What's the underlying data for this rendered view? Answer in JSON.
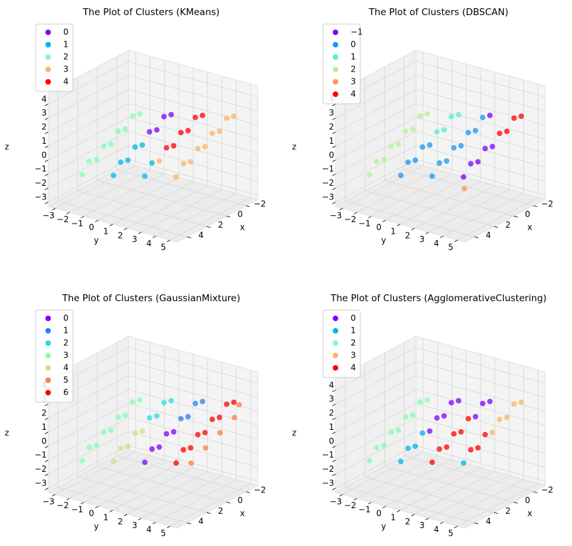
{
  "chart_data": [
    {
      "type": "scatter3d",
      "title": "The Plot of Clusters (KMeans)",
      "x_label": "x",
      "y_label": "y",
      "z_label": "z",
      "legend": "upper left",
      "xlim": [
        -3.2,
        5
      ],
      "ylim": [
        -3.5,
        5.5
      ],
      "zlim": [
        -3.3,
        4.8
      ],
      "xticks": [
        {
          "value": -2,
          "label": "−2"
        },
        0,
        2,
        4
      ],
      "yticks": [
        {
          "value": -3,
          "label": "−3"
        },
        {
          "value": -2,
          "label": "−2"
        },
        {
          "value": -1,
          "label": "−1"
        },
        0,
        1,
        2,
        3,
        4,
        5
      ],
      "zticks": [
        {
          "value": -3,
          "label": "−3"
        },
        {
          "value": -2,
          "label": "−2"
        },
        {
          "value": -1,
          "label": "−1"
        },
        0,
        1,
        2,
        3,
        4
      ],
      "series": [
        {
          "name": "0",
          "color": "#8000ff",
          "x": [
            1.25,
            1.1,
            0.95,
            0.8
          ],
          "y": [
            1,
            1.4,
            1.8,
            2.2
          ],
          "z": [
            1.9,
            2.1,
            3.1,
            3.3
          ]
        },
        {
          "name": "1",
          "color": "#00b5eb",
          "x": [
            2,
            1.85,
            1.7,
            1.55,
            1.4,
            1,
            0.85
          ],
          "y": [
            -1,
            -0.6,
            -0.2,
            0.2,
            0.6,
            0.5,
            0.9
          ],
          "z": [
            -1.5,
            -0.5,
            -0.3,
            0.7,
            0.9,
            -1.5,
            -0.5
          ]
        },
        {
          "name": "2",
          "color": "#80ffb4",
          "x": [
            3,
            2.85,
            2.7,
            2.55,
            2.4,
            2.25,
            2.1,
            1.95,
            1.8
          ],
          "y": [
            -2.5,
            -2.1,
            -1.7,
            -1.3,
            -0.9,
            -0.5,
            -0.1,
            0.3,
            0.7
          ],
          "z": [
            -1.5,
            -0.5,
            -0.3,
            0.7,
            0.9,
            1.9,
            2.1,
            3.1,
            3.3
          ]
        },
        {
          "name": "3",
          "color": "#ffb360",
          "x": [
            0.7,
            0,
            -0.15,
            -0.3,
            -0.45,
            -0.6,
            -0.75,
            -0.9,
            -1.05,
            -1.2
          ],
          "y": [
            1.3,
            2,
            2.4,
            2.8,
            3.2,
            3.6,
            4,
            4.4,
            4.8,
            5.2
          ],
          "z": [
            -0.3,
            -1.5,
            -0.5,
            -0.3,
            0.7,
            0.9,
            1.9,
            2.1,
            3.1,
            3.3
          ]
        },
        {
          "name": "4",
          "color": "#ff0000",
          "x": [
            0.55,
            0.4,
            0.25,
            0.1,
            -0.05,
            -0.2
          ],
          "y": [
            1.7,
            2.1,
            2.5,
            2.9,
            3.3,
            3.7
          ],
          "z": [
            0.7,
            0.9,
            1.9,
            2.1,
            3.1,
            3.3
          ]
        }
      ]
    },
    {
      "type": "scatter3d",
      "title": "The Plot of Clusters (DBSCAN)",
      "x_label": "x",
      "y_label": "y",
      "z_label": "z",
      "legend": "upper left",
      "xlim": [
        -3.2,
        5
      ],
      "ylim": [
        -3.5,
        5.5
      ],
      "zlim": [
        -3.3,
        4.8
      ],
      "xticks": [
        {
          "value": -2,
          "label": "−2"
        },
        0,
        2,
        4
      ],
      "yticks": [
        {
          "value": -3,
          "label": "−3"
        },
        {
          "value": -2,
          "label": "−2"
        },
        {
          "value": -1,
          "label": "−1"
        },
        0,
        1,
        2,
        3,
        4,
        5
      ],
      "zticks": [
        {
          "value": -3,
          "label": "−3"
        },
        {
          "value": -2,
          "label": "−2"
        },
        {
          "value": -1,
          "label": "−1"
        },
        0,
        1,
        2,
        3,
        4
      ],
      "series": [
        {
          "name": "−1",
          "color": "#8000ff",
          "x": [
            0,
            -0.15,
            -0.3,
            -0.45,
            -0.6,
            -0.2
          ],
          "y": [
            2,
            2.4,
            2.8,
            3.2,
            3.6,
            3.7
          ],
          "z": [
            -1.5,
            -0.5,
            -0.3,
            0.7,
            0.9,
            3.3
          ]
        },
        {
          "name": "0",
          "color": "#1996f3",
          "x": [
            2,
            1.85,
            1.7,
            1.55,
            1.4,
            1,
            0.85,
            0.7,
            0.55,
            0.4,
            0.25,
            0.1,
            -0.05
          ],
          "y": [
            -1,
            -0.6,
            -0.2,
            0.2,
            0.6,
            0.5,
            0.9,
            1.3,
            1.7,
            2.1,
            2.5,
            2.9,
            3.3
          ],
          "z": [
            -1.5,
            -0.5,
            -0.3,
            0.7,
            0.9,
            -1.5,
            -0.5,
            -0.3,
            0.7,
            0.9,
            1.9,
            2.1,
            3.1
          ]
        },
        {
          "name": "1",
          "color": "#4df3ce",
          "x": [
            1.25,
            1.1,
            0.95,
            0.8
          ],
          "y": [
            1,
            1.4,
            1.8,
            2.2
          ],
          "z": [
            1.9,
            2.1,
            3.1,
            3.3
          ]
        },
        {
          "name": "2",
          "color": "#b2f396",
          "x": [
            3,
            2.85,
            2.7,
            2.55,
            2.4,
            2.25,
            2.1,
            1.95,
            1.8
          ],
          "y": [
            -2.5,
            -2.1,
            -1.7,
            -1.3,
            -0.9,
            -0.5,
            -0.1,
            0.3,
            0.7
          ],
          "z": [
            -1.5,
            -0.5,
            -0.3,
            0.7,
            0.9,
            1.9,
            2.1,
            3.1,
            3.3
          ]
        },
        {
          "name": "3",
          "color": "#ff964f",
          "x": [
            0.2
          ],
          "y": [
            2.2
          ],
          "z": [
            -2.2
          ]
        },
        {
          "name": "4",
          "color": "#ff0000",
          "x": [
            -0.75,
            -0.9,
            -1.05,
            -1.2
          ],
          "y": [
            4,
            4.4,
            4.8,
            5.2
          ],
          "z": [
            1.9,
            2.1,
            3.1,
            3.3
          ]
        }
      ]
    },
    {
      "type": "scatter3d",
      "title": "The Plot of Clusters (GaussianMixture)",
      "x_label": "x",
      "y_label": "y",
      "z_label": "z",
      "legend": "upper left",
      "xlim": [
        -3.2,
        5
      ],
      "ylim": [
        -3.5,
        5.5
      ],
      "zlim": [
        -3.3,
        4.8
      ],
      "xticks": [
        {
          "value": -2,
          "label": "−2"
        },
        0,
        2,
        4
      ],
      "yticks": [
        {
          "value": -3,
          "label": "−3"
        },
        {
          "value": -2,
          "label": "−2"
        },
        {
          "value": -1,
          "label": "−1"
        },
        0,
        1,
        2,
        3,
        4,
        5
      ],
      "zticks": [
        {
          "value": -3,
          "label": "−3"
        },
        {
          "value": -2,
          "label": "−2"
        },
        {
          "value": -1,
          "label": "−1"
        },
        0,
        1,
        2,
        3,
        4
      ],
      "series": [
        {
          "name": "0",
          "color": "#8000ff",
          "x": [
            1,
            0.85,
            0.7,
            0.55,
            0.4
          ],
          "y": [
            0.5,
            0.9,
            1.3,
            1.7,
            2.1
          ],
          "z": [
            -1.5,
            -0.5,
            -0.3,
            0.7,
            0.9
          ]
        },
        {
          "name": "1",
          "color": "#2c7ef7",
          "x": [
            0.25,
            0.1,
            -0.05,
            -0.2
          ],
          "y": [
            2.5,
            2.9,
            3.3,
            3.7
          ],
          "z": [
            1.9,
            2.1,
            3.1,
            3.3
          ]
        },
        {
          "name": "2",
          "color": "#2adddd",
          "x": [
            1.25,
            1.1,
            0.95,
            0.8
          ],
          "y": [
            1,
            1.4,
            1.8,
            2.2
          ],
          "z": [
            1.9,
            2.1,
            3.1,
            3.3
          ]
        },
        {
          "name": "3",
          "color": "#80ffb4",
          "x": [
            3,
            2.85,
            2.7,
            2.55,
            2.4,
            2.25,
            2.1,
            1.95,
            1.8
          ],
          "y": [
            -2.5,
            -2.1,
            -1.7,
            -1.3,
            -0.9,
            -0.5,
            -0.1,
            0.3,
            0.7
          ],
          "z": [
            -1.5,
            -0.5,
            -0.3,
            0.7,
            0.9,
            1.9,
            2.1,
            3.1,
            3.3
          ]
        },
        {
          "name": "4",
          "color": "#d4dd80",
          "x": [
            2,
            1.85,
            1.7,
            1.55,
            1.4
          ],
          "y": [
            -1,
            -0.6,
            -0.2,
            0.2,
            0.6
          ],
          "z": [
            -1.5,
            -0.5,
            -0.3,
            0.7,
            0.9
          ]
        },
        {
          "name": "5",
          "color": "#ff7e41",
          "x": [
            -0.5,
            -0.8,
            -1.1,
            -1.4,
            -1.6
          ],
          "y": [
            2.7,
            3.5,
            4.3,
            5.1,
            5.3
          ],
          "z": [
            -1.5,
            -0.3,
            0.9,
            2.1,
            3
          ]
        },
        {
          "name": "6",
          "color": "#ff0000",
          "x": [
            0,
            -0.15,
            -0.3,
            -0.45,
            -0.6,
            -0.75,
            -0.9,
            -1.05,
            -1.2
          ],
          "y": [
            2,
            2.4,
            2.8,
            3.2,
            3.6,
            4,
            4.4,
            4.8,
            5.2
          ],
          "z": [
            -1.5,
            -0.5,
            -0.3,
            0.7,
            0.9,
            1.9,
            2.1,
            3.1,
            3.3
          ]
        }
      ]
    },
    {
      "type": "scatter3d",
      "title": "The Plot of Clusters (AgglomerativeClustering)",
      "x_label": "x",
      "y_label": "y",
      "z_label": "z",
      "legend": "upper left",
      "xlim": [
        -3.2,
        5
      ],
      "ylim": [
        -3.5,
        5.5
      ],
      "zlim": [
        -3.3,
        4.8
      ],
      "xticks": [
        {
          "value": -2,
          "label": "−2"
        },
        0,
        2,
        4
      ],
      "yticks": [
        {
          "value": -3,
          "label": "−3"
        },
        {
          "value": -2,
          "label": "−2"
        },
        {
          "value": -1,
          "label": "−1"
        },
        0,
        1,
        2,
        3,
        4,
        5
      ],
      "zticks": [
        {
          "value": -3,
          "label": "−3"
        },
        {
          "value": -2,
          "label": "−2"
        },
        {
          "value": -1,
          "label": "−1"
        },
        0,
        1,
        2,
        3,
        4
      ],
      "series": [
        {
          "name": "0",
          "color": "#8000ff",
          "x": [
            1.4,
            1.25,
            1.1,
            0.95,
            0.8,
            0.1,
            -0.05,
            -0.2
          ],
          "y": [
            0.6,
            1,
            1.4,
            1.8,
            2.2,
            2.9,
            3.3,
            3.7
          ],
          "z": [
            0.9,
            1.9,
            2.1,
            3.1,
            3.3,
            2.1,
            3.1,
            3.3
          ]
        },
        {
          "name": "1",
          "color": "#00b5eb",
          "x": [
            2,
            1.85,
            1.7,
            1.55,
            0
          ],
          "y": [
            -1,
            -0.6,
            -0.2,
            0.2,
            2
          ],
          "z": [
            -1.5,
            -0.5,
            -0.3,
            0.7,
            -1.5
          ]
        },
        {
          "name": "2",
          "color": "#80ffb4",
          "x": [
            3,
            2.85,
            2.7,
            2.55,
            2.4,
            2.25,
            2.1,
            1.95,
            1.8
          ],
          "y": [
            -2.5,
            -2.1,
            -1.7,
            -1.3,
            -0.9,
            -0.5,
            -0.1,
            0.3,
            0.7
          ],
          "z": [
            -1.5,
            -0.5,
            -0.3,
            0.7,
            0.9,
            1.9,
            2.1,
            3.1,
            3.3
          ]
        },
        {
          "name": "3",
          "color": "#ffb360",
          "x": [
            -0.6,
            -0.75,
            -0.9,
            -1.05,
            -1.2
          ],
          "y": [
            3.6,
            4,
            4.4,
            4.8,
            5.2
          ],
          "z": [
            0.9,
            1.9,
            2.1,
            3.1,
            3.3
          ]
        },
        {
          "name": "4",
          "color": "#ff0000",
          "x": [
            1,
            0.85,
            0.7,
            0.55,
            0.4,
            0.25,
            -0.15,
            -0.3,
            -0.45
          ],
          "y": [
            0.5,
            0.9,
            1.3,
            1.7,
            2.1,
            2.5,
            2.4,
            2.8,
            3.2
          ],
          "z": [
            -1.5,
            -0.5,
            -0.3,
            0.7,
            0.9,
            1.9,
            -0.5,
            -0.3,
            0.7
          ]
        }
      ]
    }
  ]
}
